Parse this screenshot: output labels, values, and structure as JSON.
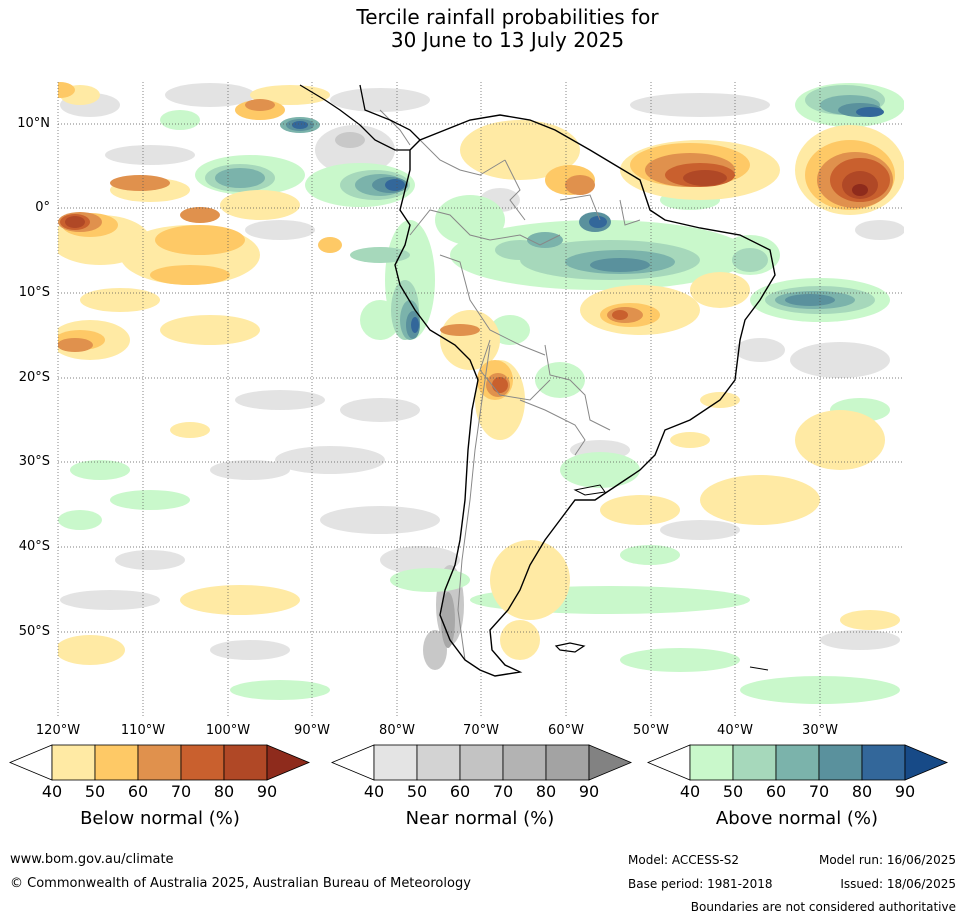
{
  "title": {
    "line1": "Tercile rainfall probabilities for",
    "line2": "30 June to 13 July 2025"
  },
  "map": {
    "lat_labels": [
      "10°N",
      "0°",
      "10°S",
      "20°S",
      "30°S",
      "40°S",
      "50°S"
    ],
    "lon_labels": [
      "120°W",
      "110°W",
      "100°W",
      "90°W",
      "80°W",
      "70°W",
      "60°W",
      "50°W",
      "40°W",
      "30°W"
    ],
    "ocean_color": "#ffffff",
    "coastline_color": "#000000",
    "boundary_color": "#888888"
  },
  "colorbars": {
    "ticks": [
      "40",
      "50",
      "60",
      "70",
      "80",
      "90"
    ],
    "below": {
      "label": "Below normal (%)",
      "colors": [
        "#ffeaa4",
        "#fec966",
        "#e0914d",
        "#c9602e",
        "#b04826",
        "#8e2b1c"
      ]
    },
    "near": {
      "label": "Near normal (%)",
      "colors": [
        "#e4e4e4",
        "#d3d3d3",
        "#c3c3c3",
        "#b3b3b3",
        "#a3a3a3",
        "#828282"
      ]
    },
    "above": {
      "label": "Above normal (%)",
      "colors": [
        "#c9f8cb",
        "#a6d8bb",
        "#7bb3ab",
        "#5a919d",
        "#33679a",
        "#174a87"
      ]
    }
  },
  "footer": {
    "website": "www.bom.gov.au/climate",
    "copyright": "© Commonwealth of Australia 2025, Australian Bureau of Meteorology",
    "model": "Model: ACCESS-S2",
    "base_period": "Base period: 1981-2018",
    "model_run": "Model run: 16/06/2025",
    "issued": "Issued: 18/06/2025",
    "disclaimer": "Boundaries are not considered authoritative"
  }
}
